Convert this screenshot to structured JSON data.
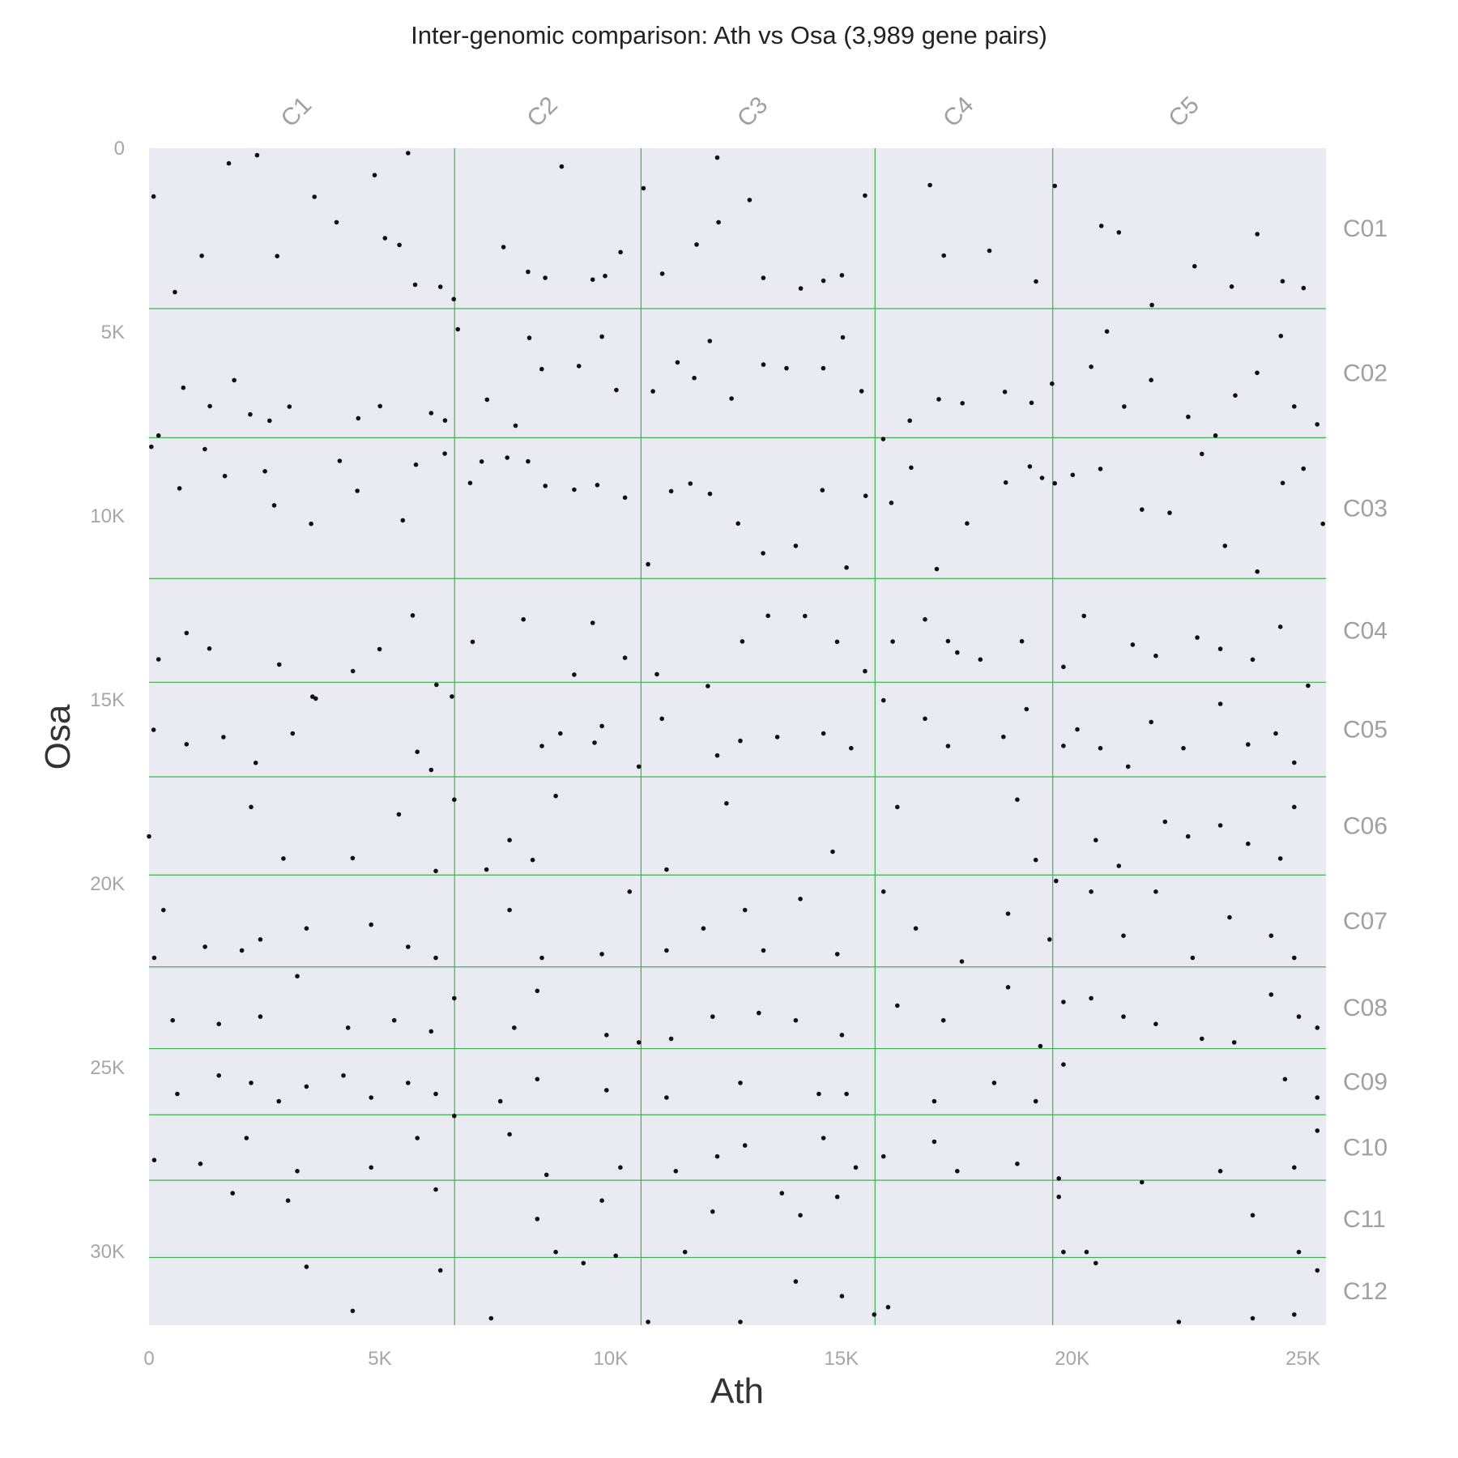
{
  "chart_data": {
    "type": "scatter",
    "title": "Inter-genomic comparison: Ath vs Osa (3,989 gene pairs)",
    "xlabel": "Ath",
    "ylabel": "Osa",
    "xlim": [
      0,
      25500
    ],
    "ylim": [
      0,
      32000
    ],
    "y_inverted": true,
    "x_ticks": [
      {
        "value": 0,
        "label": "0"
      },
      {
        "value": 5000,
        "label": "5K"
      },
      {
        "value": 10000,
        "label": "10K"
      },
      {
        "value": 15000,
        "label": "15K"
      },
      {
        "value": 20000,
        "label": "20K"
      },
      {
        "value": 25000,
        "label": "25K"
      }
    ],
    "y_ticks": [
      {
        "value": 0,
        "label": "0"
      },
      {
        "value": 5000,
        "label": "5K"
      },
      {
        "value": 10000,
        "label": "10K"
      },
      {
        "value": 15000,
        "label": "15K"
      },
      {
        "value": 20000,
        "label": "20K"
      },
      {
        "value": 25000,
        "label": "25K"
      },
      {
        "value": 30000,
        "label": "30K"
      }
    ],
    "x_chromosomes": [
      {
        "label": "C1",
        "start": 0,
        "end": 6620
      },
      {
        "label": "C2",
        "start": 6620,
        "end": 10660
      },
      {
        "label": "C3",
        "start": 10660,
        "end": 15730
      },
      {
        "label": "C4",
        "start": 15730,
        "end": 19580
      },
      {
        "label": "C5",
        "start": 19580,
        "end": 25500
      }
    ],
    "y_chromosomes": [
      {
        "label": "C01",
        "start": 0,
        "end": 4360
      },
      {
        "label": "C02",
        "start": 4360,
        "end": 7870
      },
      {
        "label": "C03",
        "start": 7870,
        "end": 11700
      },
      {
        "label": "C04",
        "start": 11700,
        "end": 14520
      },
      {
        "label": "C05",
        "start": 14520,
        "end": 17090
      },
      {
        "label": "C06",
        "start": 17090,
        "end": 19760
      },
      {
        "label": "C07",
        "start": 19760,
        "end": 22260
      },
      {
        "label": "C08",
        "start": 22260,
        "end": 24480
      },
      {
        "label": "C09",
        "start": 24480,
        "end": 26280
      },
      {
        "label": "C10",
        "start": 26280,
        "end": 28060
      },
      {
        "label": "C11",
        "start": 28060,
        "end": 30160
      },
      {
        "label": "C12",
        "start": 30160,
        "end": 32000
      }
    ],
    "grid": true,
    "colors": {
      "panel_background": "#eaeaf2",
      "boundary_lines": "#3cb44b",
      "points": "#111111"
    },
    "points": [
      [
        98,
        1313
      ],
      [
        2342,
        189
      ],
      [
        2776,
        2934
      ],
      [
        3584,
        1322
      ],
      [
        4063,
        2013
      ],
      [
        4888,
        732
      ],
      [
        5112,
        2444
      ],
      [
        5424,
        2629
      ],
      [
        5765,
        3712
      ],
      [
        6312,
        3768
      ],
      [
        6602,
        4102
      ],
      [
        7680,
        2687
      ],
      [
        8212,
        3361
      ],
      [
        8584,
        3523
      ],
      [
        9612,
        3572
      ],
      [
        9880,
        3472
      ],
      [
        10215,
        2825
      ],
      [
        10712,
        1087
      ],
      [
        11120,
        3412
      ],
      [
        11864,
        2618
      ],
      [
        12340,
        2012
      ],
      [
        13310,
        3526
      ],
      [
        14120,
        3812
      ],
      [
        14612,
        3602
      ],
      [
        15012,
        3454
      ],
      [
        15512,
        1287
      ],
      [
        16920,
        1002
      ],
      [
        17220,
        2918
      ],
      [
        18208,
        2785
      ],
      [
        19218,
        3622
      ],
      [
        19624,
        1024
      ],
      [
        20634,
        2112
      ],
      [
        21012,
        2288
      ],
      [
        21728,
        4264
      ],
      [
        22654,
        3208
      ],
      [
        23458,
        3762
      ],
      [
        24012,
        2334
      ],
      [
        24560,
        3617
      ],
      [
        25014,
        3802
      ],
      [
        560,
        3912
      ],
      [
        1142,
        2924
      ],
      [
        1728,
        412
      ],
      [
        5612,
        132
      ],
      [
        8940,
        498
      ],
      [
        12312,
        256
      ],
      [
        13012,
        1408
      ],
      [
        206,
        7812
      ],
      [
        742,
        6512
      ],
      [
        1318,
        7012
      ],
      [
        1844,
        6308
      ],
      [
        2192,
        7236
      ],
      [
        2612,
        7408
      ],
      [
        3041,
        7025
      ],
      [
        4534,
        7343
      ],
      [
        5005,
        7012
      ],
      [
        6112,
        7202
      ],
      [
        6412,
        7403
      ],
      [
        6690,
        4923
      ],
      [
        7324,
        6836
      ],
      [
        7942,
        7542
      ],
      [
        8240,
        5156
      ],
      [
        8508,
        6005
      ],
      [
        9314,
        5923
      ],
      [
        9812,
        5123
      ],
      [
        10124,
        6574
      ],
      [
        10918,
        6609
      ],
      [
        11450,
        5822
      ],
      [
        11812,
        6248
      ],
      [
        12150,
        5242
      ],
      [
        12620,
        6806
      ],
      [
        13312,
        5882
      ],
      [
        13812,
        5981
      ],
      [
        14608,
        5982
      ],
      [
        15032,
        5142
      ],
      [
        15438,
        6604
      ],
      [
        15908,
        7906
      ],
      [
        16482,
        7407
      ],
      [
        17112,
        6824
      ],
      [
        17624,
        6932
      ],
      [
        18544,
        6624
      ],
      [
        19120,
        6922
      ],
      [
        19564,
        6402
      ],
      [
        20412,
        5942
      ],
      [
        20754,
        4981
      ],
      [
        21128,
        7024
      ],
      [
        21712,
        6302
      ],
      [
        22514,
        7304
      ],
      [
        23106,
        7812
      ],
      [
        23534,
        6722
      ],
      [
        24008,
        6108
      ],
      [
        24522,
        5104
      ],
      [
        24812,
        7022
      ],
      [
        25310,
        7508
      ],
      [
        50,
        8118
      ],
      [
        660,
        9248
      ],
      [
        1210,
        8182
      ],
      [
        1642,
        8912
      ],
      [
        2512,
        8782
      ],
      [
        2712,
        9710
      ],
      [
        3512,
        10212
      ],
      [
        4132,
        8502
      ],
      [
        4512,
        9316
      ],
      [
        5498,
        10118
      ],
      [
        5782,
        8604
      ],
      [
        6408,
        8302
      ],
      [
        6956,
        9102
      ],
      [
        7208,
        8518
      ],
      [
        7760,
        8412
      ],
      [
        8212,
        8514
      ],
      [
        8586,
        9182
      ],
      [
        9212,
        9282
      ],
      [
        9712,
        9158
      ],
      [
        10312,
        9498
      ],
      [
        10812,
        11312
      ],
      [
        11312,
        9324
      ],
      [
        11728,
        9118
      ],
      [
        12154,
        9398
      ],
      [
        12762,
        10204
      ],
      [
        13304,
        11012
      ],
      [
        14012,
        10812
      ],
      [
        14590,
        9298
      ],
      [
        15112,
        11402
      ],
      [
        15526,
        9452
      ],
      [
        16082,
        9642
      ],
      [
        16512,
        8684
      ],
      [
        17068,
        11442
      ],
      [
        17724,
        10202
      ],
      [
        18562,
        9088
      ],
      [
        19084,
        8652
      ],
      [
        19348,
        8964
      ],
      [
        19624,
        9112
      ],
      [
        20012,
        8882
      ],
      [
        20612,
        8718
      ],
      [
        21512,
        9824
      ],
      [
        22112,
        9912
      ],
      [
        22812,
        8312
      ],
      [
        23312,
        10812
      ],
      [
        24012,
        11512
      ],
      [
        24562,
        9102
      ],
      [
        25012,
        8712
      ],
      [
        25434,
        10212
      ],
      [
        206,
        13896
      ],
      [
        812,
        13182
      ],
      [
        1308,
        13604
      ],
      [
        2820,
        14038
      ],
      [
        3542,
        14912
      ],
      [
        4418,
        14216
      ],
      [
        4994,
        13620
      ],
      [
        5712,
        12704
      ],
      [
        6226,
        14588
      ],
      [
        7012,
        13420
      ],
      [
        8112,
        12812
      ],
      [
        9212,
        14312
      ],
      [
        9612,
        12906
      ],
      [
        10312,
        13854
      ],
      [
        11004,
        14302
      ],
      [
        12108,
        14624
      ],
      [
        12854,
        13410
      ],
      [
        13412,
        12712
      ],
      [
        14212,
        12718
      ],
      [
        14908,
        13418
      ],
      [
        15512,
        14218
      ],
      [
        16112,
        13412
      ],
      [
        16812,
        12812
      ],
      [
        17312,
        13402
      ],
      [
        17512,
        13712
      ],
      [
        18012,
        13902
      ],
      [
        18912,
        13406
      ],
      [
        19812,
        14102
      ],
      [
        20256,
        12716
      ],
      [
        21312,
        13498
      ],
      [
        21812,
        13802
      ],
      [
        22712,
        13304
      ],
      [
        23212,
        13612
      ],
      [
        23912,
        13904
      ],
      [
        24512,
        13012
      ],
      [
        25112,
        14612
      ],
      [
        98,
        15812
      ],
      [
        812,
        16204
      ],
      [
        1612,
        16012
      ],
      [
        2312,
        16712
      ],
      [
        3112,
        15912
      ],
      [
        3612,
        14962
      ],
      [
        5812,
        16412
      ],
      [
        6112,
        16904
      ],
      [
        6562,
        14908
      ],
      [
        8512,
        16254
      ],
      [
        8912,
        15912
      ],
      [
        9652,
        16162
      ],
      [
        9812,
        15712
      ],
      [
        10612,
        16812
      ],
      [
        11112,
        15512
      ],
      [
        12312,
        16512
      ],
      [
        12812,
        16112
      ],
      [
        13612,
        16008
      ],
      [
        14612,
        15912
      ],
      [
        15212,
        16312
      ],
      [
        15912,
        15012
      ],
      [
        16812,
        15512
      ],
      [
        17312,
        16254
      ],
      [
        18512,
        16004
      ],
      [
        19012,
        15252
      ],
      [
        19812,
        16248
      ],
      [
        20112,
        15802
      ],
      [
        20612,
        16312
      ],
      [
        21212,
        16812
      ],
      [
        21712,
        15602
      ],
      [
        22412,
        16312
      ],
      [
        23212,
        15108
      ],
      [
        23812,
        16212
      ],
      [
        24412,
        15912
      ],
      [
        24812,
        16704
      ],
      [
        -2,
        18712
      ],
      [
        2212,
        17912
      ],
      [
        2912,
        19312
      ],
      [
        4412,
        19302
      ],
      [
        5412,
        18112
      ],
      [
        6212,
        19652
      ],
      [
        6612,
        17712
      ],
      [
        7312,
        19612
      ],
      [
        7812,
        18812
      ],
      [
        8312,
        19352
      ],
      [
        8812,
        17612
      ],
      [
        11212,
        19612
      ],
      [
        12512,
        17812
      ],
      [
        14812,
        19128
      ],
      [
        16212,
        17912
      ],
      [
        18812,
        17712
      ],
      [
        19212,
        19352
      ],
      [
        19652,
        19922
      ],
      [
        20512,
        18812
      ],
      [
        21012,
        19512
      ],
      [
        22012,
        18312
      ],
      [
        22512,
        18712
      ],
      [
        23212,
        18412
      ],
      [
        23812,
        18912
      ],
      [
        24512,
        19312
      ],
      [
        24812,
        17912
      ],
      [
        112,
        22012
      ],
      [
        312,
        20712
      ],
      [
        1212,
        21712
      ],
      [
        2012,
        21812
      ],
      [
        2412,
        21512
      ],
      [
        3412,
        21212
      ],
      [
        4812,
        21112
      ],
      [
        5612,
        21712
      ],
      [
        6212,
        22012
      ],
      [
        7812,
        20712
      ],
      [
        8512,
        22012
      ],
      [
        9812,
        21912
      ],
      [
        10412,
        20212
      ],
      [
        11212,
        21812
      ],
      [
        12012,
        21212
      ],
      [
        12912,
        20712
      ],
      [
        13312,
        21812
      ],
      [
        14112,
        20412
      ],
      [
        14912,
        21912
      ],
      [
        15912,
        20212
      ],
      [
        16612,
        21212
      ],
      [
        17612,
        22112
      ],
      [
        18612,
        20812
      ],
      [
        19512,
        21512
      ],
      [
        20412,
        20212
      ],
      [
        21112,
        21412
      ],
      [
        21812,
        20212
      ],
      [
        22612,
        22012
      ],
      [
        23412,
        20912
      ],
      [
        24312,
        21412
      ],
      [
        24812,
        22012
      ],
      [
        512,
        23712
      ],
      [
        1512,
        23812
      ],
      [
        2412,
        23612
      ],
      [
        3212,
        22512
      ],
      [
        4312,
        23912
      ],
      [
        5312,
        23712
      ],
      [
        6112,
        24012
      ],
      [
        6612,
        23112
      ],
      [
        7912,
        23912
      ],
      [
        8412,
        22912
      ],
      [
        9912,
        24112
      ],
      [
        10612,
        24312
      ],
      [
        11312,
        24212
      ],
      [
        12212,
        23612
      ],
      [
        13212,
        23512
      ],
      [
        14012,
        23712
      ],
      [
        15012,
        24112
      ],
      [
        16212,
        23312
      ],
      [
        17212,
        23712
      ],
      [
        18612,
        22812
      ],
      [
        19312,
        24412
      ],
      [
        19812,
        23212
      ],
      [
        20412,
        23112
      ],
      [
        21112,
        23612
      ],
      [
        21812,
        23812
      ],
      [
        22812,
        24212
      ],
      [
        23512,
        24312
      ],
      [
        24312,
        23012
      ],
      [
        24912,
        23612
      ],
      [
        25312,
        23912
      ],
      [
        612,
        25712
      ],
      [
        1512,
        25212
      ],
      [
        2212,
        25412
      ],
      [
        2812,
        25912
      ],
      [
        3412,
        25512
      ],
      [
        4212,
        25212
      ],
      [
        4812,
        25812
      ],
      [
        5612,
        25412
      ],
      [
        6212,
        25712
      ],
      [
        7612,
        25912
      ],
      [
        8412,
        25312
      ],
      [
        9912,
        25612
      ],
      [
        11212,
        25812
      ],
      [
        12812,
        25412
      ],
      [
        14512,
        25712
      ],
      [
        15112,
        25712
      ],
      [
        17012,
        25912
      ],
      [
        18312,
        25412
      ],
      [
        19212,
        25912
      ],
      [
        19812,
        24912
      ],
      [
        24612,
        25312
      ],
      [
        25312,
        25812
      ],
      [
        112,
        27512
      ],
      [
        1112,
        27612
      ],
      [
        2112,
        26912
      ],
      [
        3212,
        27812
      ],
      [
        4812,
        27712
      ],
      [
        5812,
        26912
      ],
      [
        6612,
        26312
      ],
      [
        7812,
        26812
      ],
      [
        8612,
        27912
      ],
      [
        10212,
        27712
      ],
      [
        11412,
        27812
      ],
      [
        12312,
        27412
      ],
      [
        12912,
        27112
      ],
      [
        14612,
        26912
      ],
      [
        15312,
        27712
      ],
      [
        15912,
        27412
      ],
      [
        17012,
        27012
      ],
      [
        17512,
        27812
      ],
      [
        18812,
        27612
      ],
      [
        19712,
        28012
      ],
      [
        21512,
        28112
      ],
      [
        23212,
        27812
      ],
      [
        24812,
        27712
      ],
      [
        25312,
        26712
      ],
      [
        1812,
        28412
      ],
      [
        3012,
        28612
      ],
      [
        6212,
        28312
      ],
      [
        8412,
        29112
      ],
      [
        9812,
        28612
      ],
      [
        12212,
        28912
      ],
      [
        13712,
        28412
      ],
      [
        14112,
        29012
      ],
      [
        14912,
        28512
      ],
      [
        19712,
        28512
      ],
      [
        20512,
        30312
      ],
      [
        23912,
        29012
      ],
      [
        24912,
        30012
      ],
      [
        3412,
        30412
      ],
      [
        4412,
        31612
      ],
      [
        6312,
        30512
      ],
      [
        7412,
        31812
      ],
      [
        8812,
        30012
      ],
      [
        9412,
        30312
      ],
      [
        10112,
        30112
      ],
      [
        10812,
        31912
      ],
      [
        11612,
        30012
      ],
      [
        12812,
        31912
      ],
      [
        14012,
        30812
      ],
      [
        15012,
        31212
      ],
      [
        15712,
        31712
      ],
      [
        16012,
        31512
      ],
      [
        19812,
        30012
      ],
      [
        20312,
        30012
      ],
      [
        22312,
        31912
      ],
      [
        23912,
        31812
      ],
      [
        24812,
        31712
      ],
      [
        25312,
        30512
      ]
    ]
  }
}
